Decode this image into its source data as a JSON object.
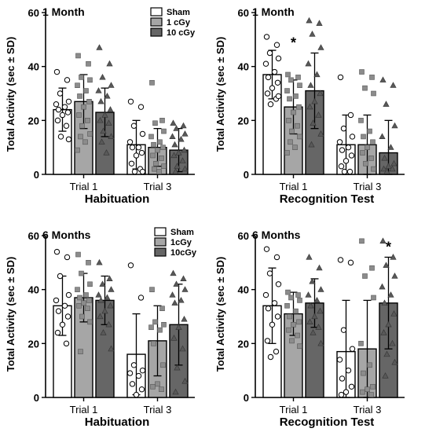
{
  "colors": {
    "sham": "#ffffff",
    "low": "#a6a6a6",
    "high": "#666666",
    "outline": "#000000"
  },
  "chart_data": [
    {
      "type": "bar",
      "panel": "top-left",
      "title": "1 Month",
      "xlabel": "Habituation",
      "ylabel": "Total Activity (sec ± SD)",
      "ylim": [
        0,
        60
      ],
      "yticks": [
        0,
        20,
        40,
        60
      ],
      "categories": [
        "Trial 1",
        "Trial 3"
      ],
      "legend": {
        "position": "top-right",
        "entries": [
          "Sham",
          "1 cGy",
          "10 cGy"
        ]
      },
      "series": [
        {
          "name": "Sham",
          "values": [
            24,
            11
          ],
          "sd": [
            8,
            9
          ],
          "points": [
            [
              38,
              35,
              30,
              27,
              26,
              25,
              24,
              23,
              22,
              20,
              18,
              14,
              13
            ],
            [
              27,
              25,
              18,
              15,
              12,
              10,
              10,
              8,
              7,
              4,
              2,
              1,
              1
            ]
          ]
        },
        {
          "name": "1 cGy",
          "values": [
            27,
            10
          ],
          "sd": [
            10,
            7
          ],
          "points": [
            [
              44,
              41,
              36,
              35,
              33,
              31,
              29,
              27,
              25,
              22,
              20,
              18,
              15,
              14,
              12,
              9
            ],
            [
              34,
              20,
              19,
              16,
              14,
              12,
              11,
              10,
              9,
              7,
              6,
              4,
              3,
              2,
              1
            ]
          ]
        },
        {
          "name": "10 cGy",
          "values": [
            23,
            9
          ],
          "sd": [
            9,
            8
          ],
          "points": [
            [
              47,
              41,
              36,
              33,
              31,
              29,
              27,
              24,
              22,
              20,
              19,
              16,
              14,
              12,
              8
            ],
            [
              19,
              18,
              17,
              15,
              14,
              13,
              11,
              9,
              8,
              7,
              5,
              3,
              2,
              1
            ]
          ]
        }
      ],
      "stars": []
    },
    {
      "type": "bar",
      "panel": "top-right",
      "title": "1 Month",
      "xlabel": "Recognition Test",
      "ylabel": "Total Activity (sec ± SD)",
      "ylim": [
        0,
        60
      ],
      "yticks": [
        0,
        20,
        40,
        60
      ],
      "categories": [
        "Trial 1",
        "Trial 3"
      ],
      "series": [
        {
          "name": "Sham",
          "values": [
            37,
            11
          ],
          "sd": [
            9,
            11
          ],
          "points": [
            [
              51,
              48,
              45,
              43,
              41,
              38,
              36,
              34,
              32,
              30,
              28,
              26,
              29
            ],
            [
              36,
              22,
              17,
              14,
              12,
              10,
              9,
              7,
              5,
              3,
              1,
              1
            ]
          ]
        },
        {
          "name": "1 cGy",
          "values": [
            25,
            11
          ],
          "sd": [
            10,
            11
          ],
          "points": [
            [
              37,
              36,
              35,
              33,
              31,
              29,
              28,
              25,
              23,
              20,
              18,
              16,
              14,
              12,
              10,
              8
            ],
            [
              38,
              36,
              32,
              30,
              20,
              16,
              14,
              12,
              10,
              8,
              6,
              4,
              2
            ]
          ]
        },
        {
          "name": "10 cGy",
          "values": [
            31,
            8
          ],
          "sd": [
            14,
            12
          ],
          "points": [
            [
              57,
              56,
              52,
              47,
              41,
              37,
              33,
              30,
              27,
              25,
              22,
              19,
              15,
              11
            ],
            [
              35,
              33,
              26,
              18,
              14,
              10,
              6,
              4,
              3,
              2,
              2,
              1
            ]
          ]
        }
      ],
      "stars": [
        {
          "category": 0,
          "series": 1,
          "y": 47
        }
      ]
    },
    {
      "type": "bar",
      "panel": "bottom-left",
      "title": "6 Months",
      "xlabel": "Habituation",
      "ylabel": "Total Activity (sec ± SD)",
      "ylim": [
        0,
        60
      ],
      "yticks": [
        0,
        20,
        40,
        60
      ],
      "categories": [
        "Trial 1",
        "Trial 3"
      ],
      "legend": {
        "position": "top-right",
        "entries": [
          "Sham",
          "1cGy",
          "10cGy"
        ]
      },
      "series": [
        {
          "name": "Sham",
          "values": [
            34,
            16
          ],
          "sd": [
            11,
            15
          ],
          "points": [
            [
              54,
              52,
              45,
              38,
              36,
              34,
              32,
              30,
              27,
              24,
              20
            ],
            [
              49,
              37,
              12,
              10,
              9,
              8,
              5,
              3,
              1
            ]
          ]
        },
        {
          "name": "1cGy",
          "values": [
            37,
            21
          ],
          "sd": [
            9,
            13
          ],
          "points": [
            [
              53,
              50,
              46,
              42,
              40,
              38,
              37,
              36,
              35,
              34,
              33,
              30,
              28,
              17
            ],
            [
              40,
              33,
              28,
              27,
              26,
              25,
              20,
              12,
              5,
              4,
              3
            ]
          ]
        },
        {
          "name": "10cGy",
          "values": [
            36,
            27
          ],
          "sd": [
            9,
            15
          ],
          "points": [
            [
              50,
              44,
              42,
              40,
              38,
              37,
              36,
              34,
              32,
              30,
              27,
              24,
              18
            ],
            [
              46,
              44,
              42,
              40,
              38,
              36,
              35,
              29,
              26,
              22,
              18,
              11,
              6,
              2
            ]
          ]
        }
      ],
      "stars": []
    },
    {
      "type": "bar",
      "panel": "bottom-right",
      "title": "6 Months",
      "xlabel": "Recognition Test",
      "ylabel": "Total Activity (sec ± SD)",
      "ylim": [
        0,
        60
      ],
      "yticks": [
        0,
        20,
        40,
        60
      ],
      "categories": [
        "Trial 1",
        "Trial 3"
      ],
      "series": [
        {
          "name": "Sham",
          "values": [
            34,
            17
          ],
          "sd": [
            14,
            19
          ],
          "points": [
            [
              55,
              52,
              46,
              42,
              38,
              35,
              33,
              30,
              27,
              21,
              17,
              15
            ],
            [
              51,
              50,
              25,
              18,
              14,
              10,
              7,
              4,
              2,
              1
            ]
          ]
        },
        {
          "name": "1 cGy",
          "values": [
            31,
            18
          ],
          "sd": [
            8,
            18
          ],
          "points": [
            [
              39,
              38,
              37,
              36,
              34,
              32,
              30,
              28,
              27,
              25,
              23,
              21,
              19
            ],
            [
              58,
              48,
              45,
              37,
              20,
              12,
              9,
              4,
              3,
              2,
              1
            ]
          ]
        },
        {
          "name": "10 cGy",
          "values": [
            35,
            35
          ],
          "sd": [
            9,
            17
          ],
          "points": [
            [
              52,
              48,
              43,
              40,
              38,
              36,
              34,
              32,
              30,
              28,
              26,
              24,
              20
            ],
            [
              58,
              52,
              49,
              45,
              41,
              38,
              35,
              31,
              27,
              24,
              20,
              16,
              13,
              8
            ]
          ]
        }
      ],
      "stars": [
        {
          "category": 1,
          "series": 2,
          "y": 54
        }
      ]
    }
  ]
}
